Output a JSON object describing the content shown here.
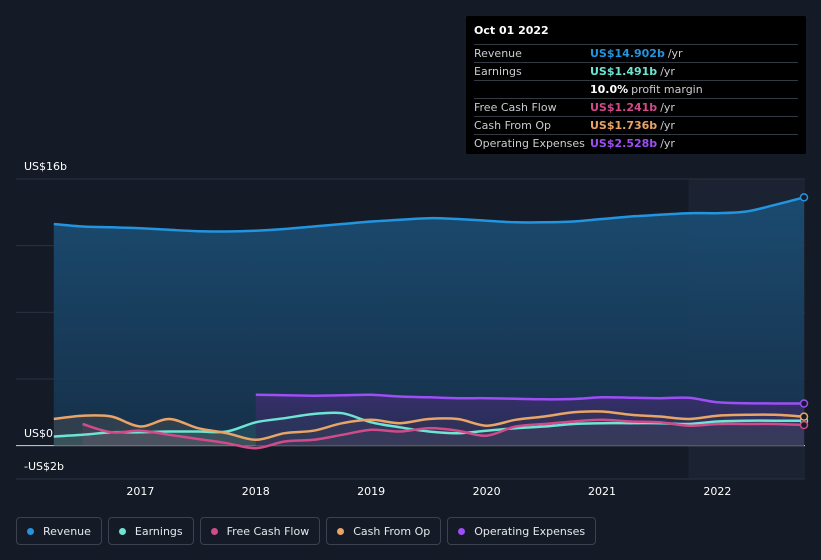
{
  "colors": {
    "revenue": "#2394df",
    "earnings": "#6ee4d3",
    "free_cash_flow": "#d14b8a",
    "cash_from_op": "#e9a466",
    "operating_expenses": "#9d4ef5",
    "background": "#151b26"
  },
  "tooltip": {
    "date": "Oct 01 2022",
    "rows": [
      {
        "label": "Revenue",
        "value": "US$14.902b",
        "unit": "/yr",
        "color": "#2394df"
      },
      {
        "label": "Earnings",
        "value": "US$1.491b",
        "unit": "/yr",
        "color": "#6ee4d3"
      },
      {
        "label": "",
        "value": "10.0%",
        "unit": "profit margin",
        "color": "#ffffff"
      },
      {
        "label": "Free Cash Flow",
        "value": "US$1.241b",
        "unit": "/yr",
        "color": "#d14b8a"
      },
      {
        "label": "Cash From Op",
        "value": "US$1.736b",
        "unit": "/yr",
        "color": "#e9a466"
      },
      {
        "label": "Operating Expenses",
        "value": "US$2.528b",
        "unit": "/yr",
        "color": "#9d4ef5"
      }
    ]
  },
  "legend": [
    {
      "label": "Revenue",
      "color": "#2394df"
    },
    {
      "label": "Earnings",
      "color": "#6ee4d3"
    },
    {
      "label": "Free Cash Flow",
      "color": "#d14b8a"
    },
    {
      "label": "Cash From Op",
      "color": "#e9a466"
    },
    {
      "label": "Operating Expenses",
      "color": "#9d4ef5"
    }
  ],
  "chart_data": {
    "type": "line",
    "xlim": [
      2016.2,
      2022.75
    ],
    "ylim": [
      -2,
      16
    ],
    "y_tick_labels": [
      {
        "value": 16,
        "label": "US$16b"
      },
      {
        "value": 0,
        "label": "US$0"
      },
      {
        "value": -2,
        "label": "-US$2b"
      }
    ],
    "x_ticks": [
      {
        "value": 2017,
        "label": "2017"
      },
      {
        "value": 2018,
        "label": "2018"
      },
      {
        "value": 2019,
        "label": "2019"
      },
      {
        "value": 2020,
        "label": "2020"
      },
      {
        "value": 2021,
        "label": "2021"
      },
      {
        "value": 2022,
        "label": "2022"
      }
    ],
    "highlight_start": 2021.75,
    "series": [
      {
        "name": "Revenue",
        "key": "revenue",
        "x": [
          2016.25,
          2016.5,
          2016.75,
          2017.0,
          2017.25,
          2017.5,
          2017.75,
          2018.0,
          2018.25,
          2018.5,
          2018.75,
          2019.0,
          2019.25,
          2019.5,
          2019.75,
          2020.0,
          2020.25,
          2020.5,
          2020.75,
          2021.0,
          2021.25,
          2021.5,
          2021.75,
          2022.0,
          2022.25,
          2022.5,
          2022.75
        ],
        "y": [
          13.3,
          13.15,
          13.1,
          13.05,
          12.95,
          12.87,
          12.85,
          12.9,
          13.0,
          13.15,
          13.3,
          13.45,
          13.55,
          13.65,
          13.6,
          13.5,
          13.4,
          13.4,
          13.45,
          13.6,
          13.75,
          13.85,
          13.95,
          13.95,
          14.05,
          14.45,
          14.9
        ]
      },
      {
        "name": "Earnings",
        "key": "earnings",
        "x": [
          2016.25,
          2016.5,
          2016.75,
          2017.0,
          2017.25,
          2017.5,
          2017.75,
          2018.0,
          2018.25,
          2018.5,
          2018.75,
          2019.0,
          2019.25,
          2019.5,
          2019.75,
          2020.0,
          2020.25,
          2020.5,
          2020.75,
          2021.0,
          2021.25,
          2021.5,
          2021.75,
          2022.0,
          2022.25,
          2022.5,
          2022.75
        ],
        "y": [
          0.55,
          0.65,
          0.8,
          0.8,
          0.85,
          0.85,
          0.85,
          1.4,
          1.65,
          1.9,
          1.95,
          1.4,
          1.1,
          0.85,
          0.75,
          0.9,
          1.05,
          1.15,
          1.3,
          1.35,
          1.35,
          1.35,
          1.3,
          1.45,
          1.5,
          1.5,
          1.49
        ]
      },
      {
        "name": "Free Cash Flow",
        "key": "free_cash_flow",
        "x": [
          2016.5,
          2016.75,
          2017.0,
          2017.25,
          2017.5,
          2017.75,
          2018.0,
          2018.25,
          2018.5,
          2018.75,
          2019.0,
          2019.25,
          2019.5,
          2019.75,
          2020.0,
          2020.25,
          2020.5,
          2020.75,
          2021.0,
          2021.25,
          2021.5,
          2021.75,
          2022.0,
          2022.25,
          2022.5,
          2022.75
        ],
        "y": [
          1.3,
          0.8,
          0.9,
          0.65,
          0.4,
          0.15,
          -0.15,
          0.25,
          0.35,
          0.65,
          0.95,
          0.85,
          1.05,
          0.9,
          0.6,
          1.15,
          1.3,
          1.45,
          1.55,
          1.45,
          1.4,
          1.2,
          1.3,
          1.3,
          1.3,
          1.24
        ]
      },
      {
        "name": "Cash From Op",
        "key": "cash_from_op",
        "x": [
          2016.25,
          2016.5,
          2016.75,
          2017.0,
          2017.25,
          2017.5,
          2017.75,
          2018.0,
          2018.25,
          2018.5,
          2018.75,
          2019.0,
          2019.25,
          2019.5,
          2019.75,
          2020.0,
          2020.25,
          2020.5,
          2020.75,
          2021.0,
          2021.25,
          2021.5,
          2021.75,
          2022.0,
          2022.25,
          2022.5,
          2022.75
        ],
        "y": [
          1.6,
          1.8,
          1.75,
          1.15,
          1.6,
          1.05,
          0.75,
          0.35,
          0.75,
          0.9,
          1.35,
          1.55,
          1.35,
          1.6,
          1.6,
          1.2,
          1.55,
          1.75,
          2.0,
          2.05,
          1.85,
          1.75,
          1.6,
          1.8,
          1.85,
          1.85,
          1.74
        ]
      },
      {
        "name": "Operating Expenses",
        "key": "operating_expenses",
        "x": [
          2018.0,
          2018.25,
          2018.5,
          2018.75,
          2019.0,
          2019.25,
          2019.5,
          2019.75,
          2020.0,
          2020.25,
          2020.5,
          2020.75,
          2021.0,
          2021.25,
          2021.5,
          2021.75,
          2022.0,
          2022.25,
          2022.5,
          2022.75
        ],
        "y": [
          3.05,
          3.03,
          3.0,
          3.02,
          3.05,
          2.95,
          2.9,
          2.85,
          2.85,
          2.82,
          2.78,
          2.8,
          2.9,
          2.88,
          2.85,
          2.87,
          2.6,
          2.55,
          2.53,
          2.53
        ]
      }
    ]
  }
}
